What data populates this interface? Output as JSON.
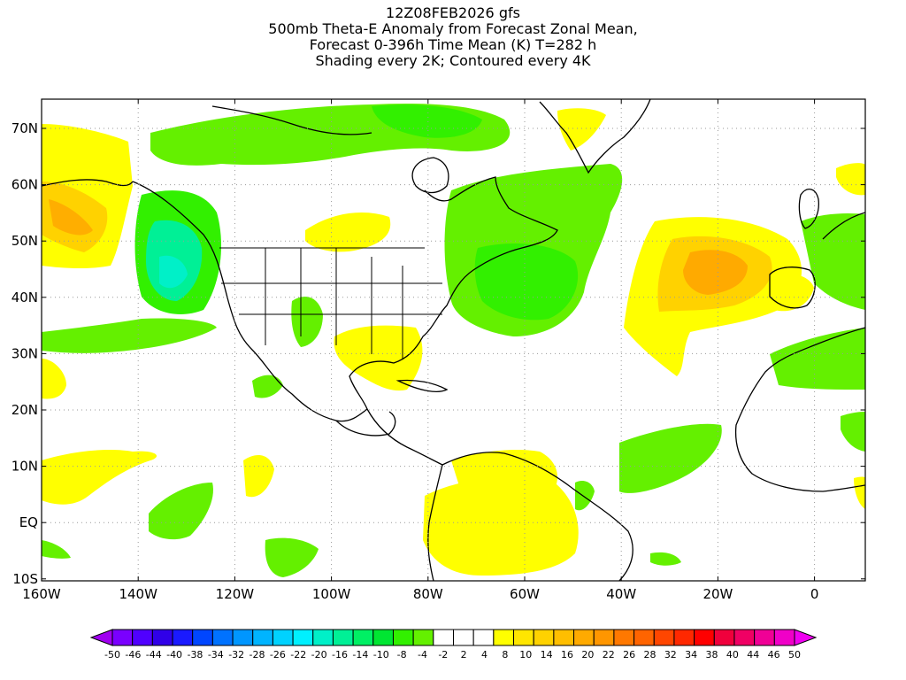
{
  "header": {
    "lines": [
      "12Z08FEB2026 gfs",
      "500mb Theta-E Anomaly from Forecast Zonal Mean,",
      "Forecast 0-396h Time Mean (K) T=282 h",
      "Shading every 2K; Contoured every 4K"
    ]
  },
  "axes": {
    "lat_labels": [
      "70N",
      "60N",
      "50N",
      "40N",
      "30N",
      "20N",
      "10N",
      "EQ",
      "10S"
    ],
    "lon_labels": [
      "160W",
      "140W",
      "120W",
      "100W",
      "80W",
      "60W",
      "40W",
      "20W",
      "0"
    ]
  },
  "colorbar": {
    "tick_labels": [
      "-50",
      "-46",
      "-44",
      "-40",
      "-38",
      "-34",
      "-32",
      "-28",
      "-26",
      "-22",
      "-20",
      "-16",
      "-14",
      "-10",
      "-8",
      "-4",
      "-2",
      "2",
      "4",
      "8",
      "10",
      "14",
      "16",
      "20",
      "22",
      "26",
      "28",
      "32",
      "34",
      "38",
      "40",
      "44",
      "46",
      "50"
    ],
    "colors": [
      "#a000f0",
      "#7a00ff",
      "#5000ff",
      "#3000e8",
      "#1a1aff",
      "#0046ff",
      "#0072ff",
      "#0096ff",
      "#00b4ff",
      "#00d2ff",
      "#00f0ff",
      "#00f0c8",
      "#00f096",
      "#00f064",
      "#00e632",
      "#32f000",
      "#64f000",
      "#ffffff",
      "#ffffff",
      "#ffffff",
      "#ffff00",
      "#ffe600",
      "#ffd200",
      "#ffbe00",
      "#ffaa00",
      "#ff9600",
      "#ff7800",
      "#ff6400",
      "#ff4600",
      "#ff2800",
      "#ff0000",
      "#f0003c",
      "#f00064",
      "#f00096",
      "#f000c8",
      "#f000f0"
    ]
  },
  "legend_colors": {
    "green": "#64f000",
    "green_dark": "#32f000",
    "cyan": "#00f0c8",
    "yellow": "#ffff00",
    "orange_light": "#ffd200",
    "orange": "#ffaa00"
  }
}
